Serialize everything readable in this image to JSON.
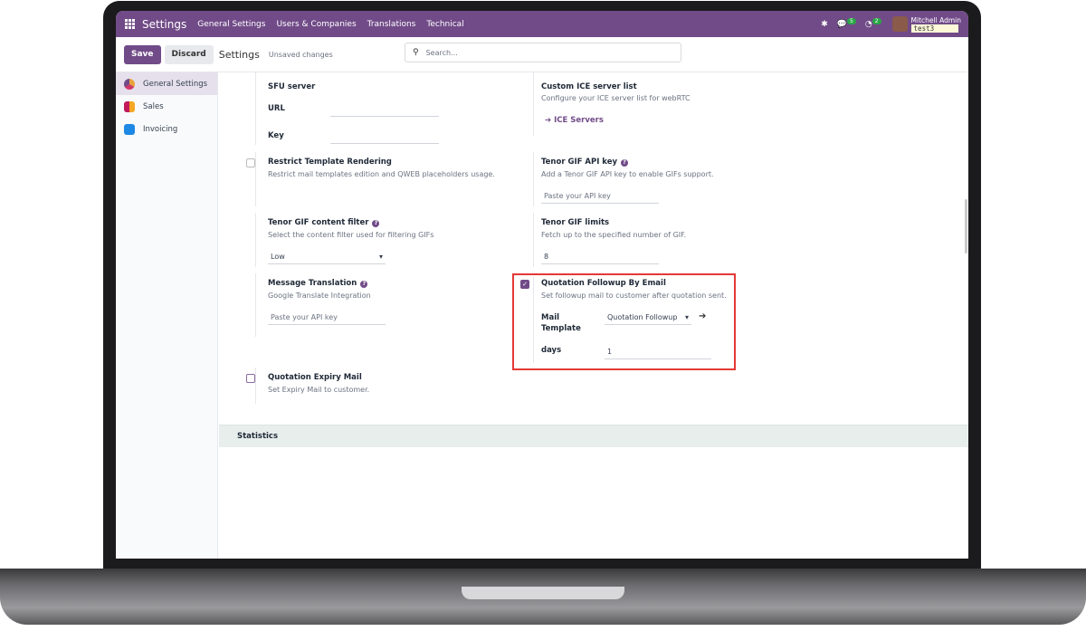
{
  "navbar": {
    "app": "Settings",
    "menu": [
      "General Settings",
      "Users & Companies",
      "Translations",
      "Technical"
    ],
    "messages_count": "5",
    "activities_count": "2",
    "user": "Mitchell Admin",
    "database": "test3"
  },
  "control_panel": {
    "save": "Save",
    "discard": "Discard",
    "title": "Settings",
    "status": "Unsaved changes",
    "search_placeholder": "Search..."
  },
  "sidebar": {
    "items": [
      {
        "label": "General Settings",
        "active": true
      },
      {
        "label": "Sales"
      },
      {
        "label": "Invoicing"
      }
    ]
  },
  "settings": {
    "sfu": {
      "title": "SFU server",
      "url_label": "URL",
      "key_label": "Key",
      "url": "",
      "key": ""
    },
    "ice": {
      "title": "Custom ICE server list",
      "desc": "Configure your ICE server list for webRTC",
      "link": "ICE Servers"
    },
    "restrict": {
      "title": "Restrict Template Rendering",
      "desc": "Restrict mail templates edition and QWEB placeholders usage.",
      "checked": false
    },
    "tenor_key": {
      "title": "Tenor GIF API key",
      "desc": "Add a Tenor GIF API key to enable GIFs support.",
      "placeholder": "Paste your API key"
    },
    "tenor_filter": {
      "title": "Tenor GIF content filter",
      "desc": "Select the content filter used for filtering GIFs",
      "value": "Low"
    },
    "tenor_limits": {
      "title": "Tenor GIF limits",
      "desc": "Fetch up to the specified number of GIF.",
      "value": "8"
    },
    "translation": {
      "title": "Message Translation",
      "desc": "Google Translate Integration",
      "placeholder": "Paste your API key"
    },
    "followup": {
      "title": "Quotation Followup By Email",
      "desc": "Set followup mail to customer after quotation sent.",
      "checked": true,
      "template_label": "Mail Template",
      "template_value": "Quotation Followup",
      "days_label": "days",
      "days_value": "1"
    },
    "expiry": {
      "title": "Quotation Expiry Mail",
      "desc": "Set Expiry Mail to customer.",
      "checked": false
    }
  },
  "section": {
    "statistics": "Statistics"
  },
  "colors": {
    "brand": "#714b88",
    "highlight": "#e53935"
  }
}
